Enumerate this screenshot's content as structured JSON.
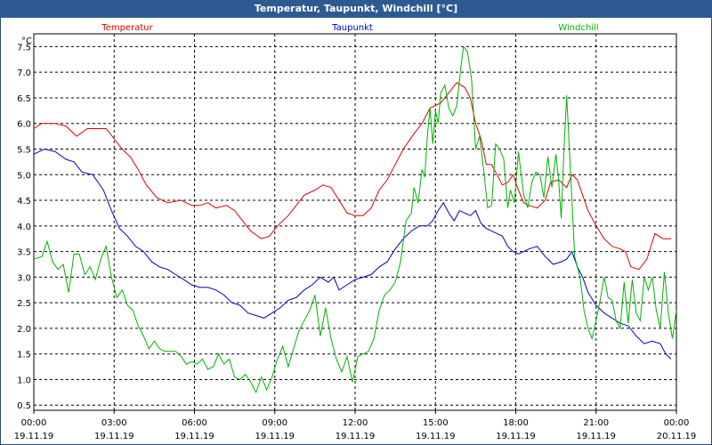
{
  "window": {
    "title": "Temperatur, Taupunkt, Windchill [°C]"
  },
  "chart_data": {
    "type": "line",
    "title": "Temperatur, Taupunkt, Windchill [°C]",
    "ylabel": "°C",
    "xlabel": "",
    "ylim": [
      0.4,
      7.75
    ],
    "yticks": [
      0.5,
      1.0,
      1.5,
      2.0,
      2.5,
      3.0,
      3.5,
      4.0,
      4.5,
      5.0,
      5.5,
      6.0,
      6.5,
      7.0,
      7.5
    ],
    "ytick_labels": [
      "0.5",
      "1.0",
      "1.5",
      "2.0",
      "2.5",
      "3.0",
      "3.5",
      "4.0",
      "4.5",
      "5.0",
      "5.5",
      "6.0",
      "6.5",
      "7.0",
      "7.5"
    ],
    "xlim": [
      0,
      24
    ],
    "xticks": [
      0,
      3,
      6,
      9,
      12,
      15,
      18,
      21,
      24
    ],
    "xtick_times": [
      "00:00",
      "03:00",
      "06:00",
      "09:00",
      "12:00",
      "15:00",
      "18:00",
      "21:00",
      "00:00"
    ],
    "xtick_dates": [
      "19.11.19",
      "19.11.19",
      "19.11.19",
      "19.11.19",
      "19.11.19",
      "19.11.19",
      "19.11.19",
      "19.11.19",
      "20.11.19"
    ],
    "grid": true,
    "legend_position": "top",
    "series": [
      {
        "name": "Temperatur",
        "color": "#e00000",
        "points": [
          [
            0,
            5.9
          ],
          [
            0.3,
            6.0
          ],
          [
            0.8,
            6.0
          ],
          [
            1.2,
            5.95
          ],
          [
            1.6,
            5.75
          ],
          [
            2.0,
            5.9
          ],
          [
            2.5,
            5.9
          ],
          [
            2.7,
            5.9
          ],
          [
            3.0,
            5.7
          ],
          [
            3.3,
            5.5
          ],
          [
            3.6,
            5.35
          ],
          [
            3.9,
            5.1
          ],
          [
            4.2,
            4.8
          ],
          [
            4.6,
            4.55
          ],
          [
            5.0,
            4.45
          ],
          [
            5.5,
            4.5
          ],
          [
            5.9,
            4.4
          ],
          [
            6.2,
            4.4
          ],
          [
            6.5,
            4.45
          ],
          [
            6.8,
            4.35
          ],
          [
            7.2,
            4.4
          ],
          [
            7.5,
            4.3
          ],
          [
            7.8,
            4.1
          ],
          [
            8.1,
            3.9
          ],
          [
            8.5,
            3.75
          ],
          [
            8.8,
            3.8
          ],
          [
            9.1,
            4.0
          ],
          [
            9.5,
            4.2
          ],
          [
            9.8,
            4.4
          ],
          [
            10.1,
            4.6
          ],
          [
            10.5,
            4.7
          ],
          [
            10.8,
            4.8
          ],
          [
            11.1,
            4.75
          ],
          [
            11.4,
            4.5
          ],
          [
            11.7,
            4.25
          ],
          [
            12.0,
            4.2
          ],
          [
            12.3,
            4.2
          ],
          [
            12.6,
            4.35
          ],
          [
            12.9,
            4.7
          ],
          [
            13.2,
            4.9
          ],
          [
            13.5,
            5.2
          ],
          [
            13.8,
            5.5
          ],
          [
            14.2,
            5.8
          ],
          [
            14.5,
            6.0
          ],
          [
            14.8,
            6.3
          ],
          [
            15.2,
            6.4
          ],
          [
            15.5,
            6.6
          ],
          [
            15.8,
            6.8
          ],
          [
            16.1,
            6.7
          ],
          [
            16.3,
            6.5
          ],
          [
            16.5,
            6.0
          ],
          [
            16.7,
            5.7
          ],
          [
            16.9,
            5.2
          ],
          [
            17.1,
            5.2
          ],
          [
            17.3,
            5.0
          ],
          [
            17.5,
            4.8
          ],
          [
            17.7,
            4.85
          ],
          [
            17.9,
            5.0
          ],
          [
            18.1,
            4.7
          ],
          [
            18.3,
            4.45
          ],
          [
            18.5,
            4.4
          ],
          [
            18.8,
            4.35
          ],
          [
            19.1,
            4.5
          ],
          [
            19.3,
            4.85
          ],
          [
            19.6,
            4.9
          ],
          [
            19.9,
            4.75
          ],
          [
            20.1,
            5.0
          ],
          [
            20.3,
            4.9
          ],
          [
            20.5,
            4.6
          ],
          [
            20.7,
            4.3
          ],
          [
            21.0,
            4.0
          ],
          [
            21.3,
            3.75
          ],
          [
            21.6,
            3.6
          ],
          [
            21.9,
            3.55
          ],
          [
            22.1,
            3.5
          ],
          [
            22.3,
            3.2
          ],
          [
            22.6,
            3.15
          ],
          [
            22.9,
            3.35
          ],
          [
            23.2,
            3.85
          ],
          [
            23.5,
            3.75
          ],
          [
            23.8,
            3.75
          ]
        ]
      },
      {
        "name": "Taupunkt",
        "color": "#0000c0",
        "points": [
          [
            0,
            5.4
          ],
          [
            0.4,
            5.5
          ],
          [
            0.8,
            5.45
          ],
          [
            1.2,
            5.3
          ],
          [
            1.5,
            5.25
          ],
          [
            1.8,
            5.05
          ],
          [
            2.2,
            5.0
          ],
          [
            2.6,
            4.7
          ],
          [
            2.9,
            4.3
          ],
          [
            3.2,
            3.95
          ],
          [
            3.5,
            3.8
          ],
          [
            3.8,
            3.6
          ],
          [
            4.1,
            3.5
          ],
          [
            4.4,
            3.3
          ],
          [
            4.7,
            3.2
          ],
          [
            5.0,
            3.15
          ],
          [
            5.3,
            3.05
          ],
          [
            5.6,
            2.95
          ],
          [
            5.9,
            2.85
          ],
          [
            6.2,
            2.8
          ],
          [
            6.5,
            2.8
          ],
          [
            6.8,
            2.75
          ],
          [
            7.1,
            2.65
          ],
          [
            7.4,
            2.5
          ],
          [
            7.7,
            2.45
          ],
          [
            8.0,
            2.3
          ],
          [
            8.3,
            2.25
          ],
          [
            8.6,
            2.2
          ],
          [
            8.9,
            2.3
          ],
          [
            9.2,
            2.4
          ],
          [
            9.5,
            2.55
          ],
          [
            9.8,
            2.6
          ],
          [
            10.1,
            2.75
          ],
          [
            10.4,
            2.85
          ],
          [
            10.7,
            3.0
          ],
          [
            11.0,
            2.9
          ],
          [
            11.2,
            3.0
          ],
          [
            11.4,
            2.75
          ],
          [
            11.7,
            2.85
          ],
          [
            12.0,
            2.95
          ],
          [
            12.3,
            3.0
          ],
          [
            12.6,
            3.05
          ],
          [
            12.9,
            3.2
          ],
          [
            13.2,
            3.3
          ],
          [
            13.5,
            3.55
          ],
          [
            13.8,
            3.75
          ],
          [
            14.1,
            3.9
          ],
          [
            14.4,
            4.0
          ],
          [
            14.7,
            4.0
          ],
          [
            14.9,
            4.1
          ],
          [
            15.1,
            4.3
          ],
          [
            15.3,
            4.45
          ],
          [
            15.5,
            4.25
          ],
          [
            15.7,
            4.1
          ],
          [
            15.9,
            4.3
          ],
          [
            16.1,
            4.25
          ],
          [
            16.3,
            4.2
          ],
          [
            16.5,
            4.3
          ],
          [
            16.7,
            4.05
          ],
          [
            16.9,
            3.95
          ],
          [
            17.1,
            3.9
          ],
          [
            17.3,
            3.85
          ],
          [
            17.5,
            3.8
          ],
          [
            17.7,
            3.6
          ],
          [
            17.9,
            3.5
          ],
          [
            18.1,
            3.45
          ],
          [
            18.3,
            3.5
          ],
          [
            18.5,
            3.55
          ],
          [
            18.8,
            3.6
          ],
          [
            19.1,
            3.4
          ],
          [
            19.4,
            3.25
          ],
          [
            19.7,
            3.3
          ],
          [
            19.9,
            3.35
          ],
          [
            20.1,
            3.5
          ],
          [
            20.3,
            3.2
          ],
          [
            20.5,
            3.0
          ],
          [
            20.7,
            2.7
          ],
          [
            21.0,
            2.45
          ],
          [
            21.3,
            2.3
          ],
          [
            21.6,
            2.2
          ],
          [
            21.9,
            2.1
          ],
          [
            22.2,
            2.05
          ],
          [
            22.5,
            1.85
          ],
          [
            22.8,
            1.7
          ],
          [
            23.1,
            1.75
          ],
          [
            23.4,
            1.7
          ],
          [
            23.6,
            1.5
          ],
          [
            23.8,
            1.4
          ]
        ]
      },
      {
        "name": "Windchill",
        "color": "#00b400",
        "points": [
          [
            0,
            3.35
          ],
          [
            0.3,
            3.4
          ],
          [
            0.5,
            3.7
          ],
          [
            0.7,
            3.3
          ],
          [
            0.9,
            3.15
          ],
          [
            1.1,
            3.25
          ],
          [
            1.3,
            2.7
          ],
          [
            1.5,
            3.45
          ],
          [
            1.7,
            3.45
          ],
          [
            1.9,
            3.05
          ],
          [
            2.1,
            3.2
          ],
          [
            2.3,
            2.95
          ],
          [
            2.5,
            3.35
          ],
          [
            2.7,
            3.6
          ],
          [
            2.9,
            3.0
          ],
          [
            3.1,
            2.6
          ],
          [
            3.3,
            2.75
          ],
          [
            3.5,
            2.45
          ],
          [
            3.7,
            2.35
          ],
          [
            3.9,
            2.05
          ],
          [
            4.1,
            1.85
          ],
          [
            4.3,
            1.6
          ],
          [
            4.5,
            1.75
          ],
          [
            4.7,
            1.6
          ],
          [
            4.9,
            1.55
          ],
          [
            5.1,
            1.55
          ],
          [
            5.3,
            1.55
          ],
          [
            5.5,
            1.45
          ],
          [
            5.7,
            1.3
          ],
          [
            5.9,
            1.35
          ],
          [
            6.1,
            1.3
          ],
          [
            6.3,
            1.4
          ],
          [
            6.5,
            1.2
          ],
          [
            6.7,
            1.25
          ],
          [
            6.9,
            1.5
          ],
          [
            7.1,
            1.3
          ],
          [
            7.3,
            1.4
          ],
          [
            7.5,
            1.05
          ],
          [
            7.7,
            1.0
          ],
          [
            7.9,
            1.1
          ],
          [
            8.1,
            0.95
          ],
          [
            8.3,
            0.75
          ],
          [
            8.5,
            1.05
          ],
          [
            8.7,
            0.8
          ],
          [
            8.9,
            1.05
          ],
          [
            9.1,
            1.4
          ],
          [
            9.3,
            1.65
          ],
          [
            9.5,
            1.25
          ],
          [
            9.7,
            1.6
          ],
          [
            9.9,
            1.95
          ],
          [
            10.1,
            2.15
          ],
          [
            10.3,
            2.35
          ],
          [
            10.5,
            2.65
          ],
          [
            10.7,
            1.85
          ],
          [
            10.9,
            2.4
          ],
          [
            11.1,
            1.8
          ],
          [
            11.3,
            1.4
          ],
          [
            11.5,
            1.15
          ],
          [
            11.7,
            1.45
          ],
          [
            11.9,
            0.95
          ],
          [
            12.1,
            1.45
          ],
          [
            12.3,
            1.5
          ],
          [
            12.5,
            1.55
          ],
          [
            12.7,
            1.8
          ],
          [
            12.9,
            2.35
          ],
          [
            13.1,
            2.65
          ],
          [
            13.3,
            2.75
          ],
          [
            13.5,
            2.9
          ],
          [
            13.7,
            3.3
          ],
          [
            13.9,
            4.1
          ],
          [
            14.1,
            4.25
          ],
          [
            14.2,
            4.75
          ],
          [
            14.35,
            4.45
          ],
          [
            14.5,
            5.1
          ],
          [
            14.6,
            4.95
          ],
          [
            14.7,
            5.75
          ],
          [
            14.8,
            6.3
          ],
          [
            14.9,
            5.6
          ],
          [
            15.0,
            6.25
          ],
          [
            15.1,
            6.0
          ],
          [
            15.2,
            6.6
          ],
          [
            15.35,
            6.75
          ],
          [
            15.5,
            6.3
          ],
          [
            15.65,
            6.15
          ],
          [
            15.8,
            6.35
          ],
          [
            15.95,
            7.1
          ],
          [
            16.05,
            7.5
          ],
          [
            16.2,
            7.4
          ],
          [
            16.35,
            6.85
          ],
          [
            16.5,
            5.5
          ],
          [
            16.65,
            5.75
          ],
          [
            16.8,
            5.1
          ],
          [
            16.95,
            4.35
          ],
          [
            17.1,
            4.4
          ],
          [
            17.25,
            5.6
          ],
          [
            17.4,
            5.5
          ],
          [
            17.55,
            5.3
          ],
          [
            17.7,
            4.35
          ],
          [
            17.8,
            4.7
          ],
          [
            17.95,
            4.45
          ],
          [
            18.1,
            5.45
          ],
          [
            18.3,
            4.6
          ],
          [
            18.45,
            4.35
          ],
          [
            18.6,
            4.85
          ],
          [
            18.75,
            5.05
          ],
          [
            18.9,
            5.0
          ],
          [
            19.05,
            4.55
          ],
          [
            19.2,
            5.35
          ],
          [
            19.35,
            4.75
          ],
          [
            19.5,
            5.4
          ],
          [
            19.6,
            4.9
          ],
          [
            19.7,
            4.15
          ],
          [
            19.8,
            5.5
          ],
          [
            19.9,
            6.55
          ],
          [
            20.05,
            5.0
          ],
          [
            20.2,
            3.4
          ],
          [
            20.4,
            3.0
          ],
          [
            20.55,
            2.35
          ],
          [
            20.7,
            2.0
          ],
          [
            20.85,
            1.8
          ],
          [
            21.0,
            2.15
          ],
          [
            21.15,
            2.55
          ],
          [
            21.3,
            3.0
          ],
          [
            21.45,
            2.6
          ],
          [
            21.6,
            2.55
          ],
          [
            21.75,
            2.15
          ],
          [
            21.9,
            2.0
          ],
          [
            22.05,
            2.9
          ],
          [
            22.2,
            2.1
          ],
          [
            22.35,
            2.95
          ],
          [
            22.5,
            2.3
          ],
          [
            22.65,
            2.15
          ],
          [
            22.8,
            3.0
          ],
          [
            22.95,
            2.75
          ],
          [
            23.1,
            3.0
          ],
          [
            23.25,
            2.35
          ],
          [
            23.4,
            2.0
          ],
          [
            23.55,
            3.1
          ],
          [
            23.7,
            2.3
          ],
          [
            23.85,
            1.8
          ],
          [
            24.0,
            2.35
          ]
        ]
      }
    ]
  }
}
